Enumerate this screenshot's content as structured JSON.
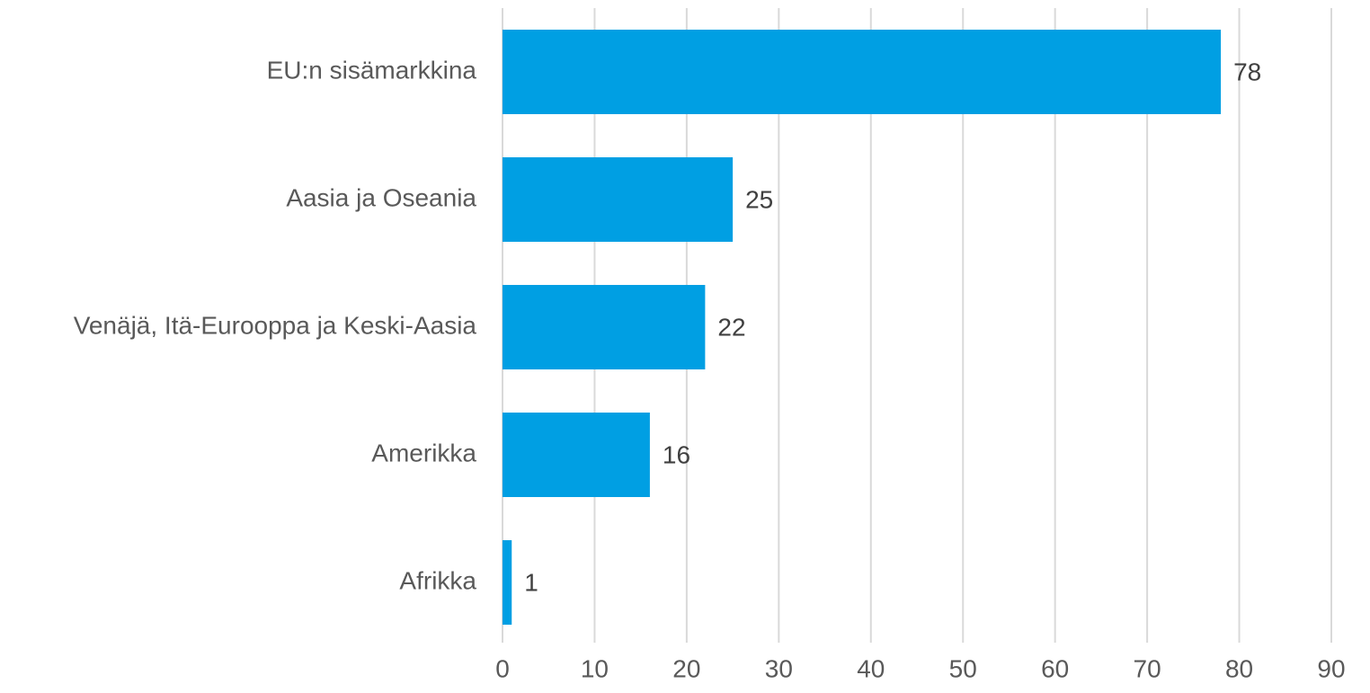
{
  "chart_data": {
    "type": "bar",
    "orientation": "horizontal",
    "categories": [
      "EU:n sisämarkkina",
      "Aasia ja Oseania",
      "Venäjä, Itä-Eurooppa ja Keski-Aasia",
      "Amerikka",
      "Afrikka"
    ],
    "values": [
      78,
      25,
      22,
      16,
      1
    ],
    "color": "#009fe3",
    "xlim": [
      0,
      90
    ],
    "xticks": [
      0,
      10,
      20,
      30,
      40,
      50,
      60,
      70,
      80,
      90
    ],
    "grid": true
  }
}
